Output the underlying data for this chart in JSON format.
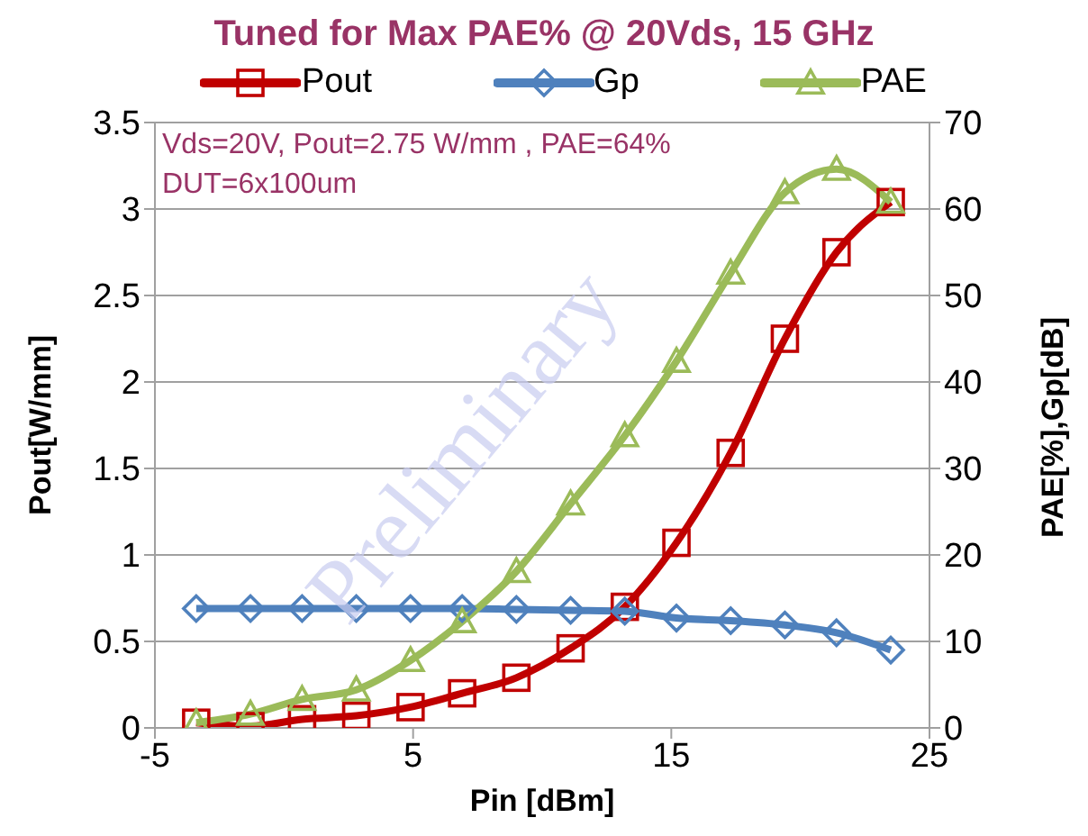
{
  "chart_data": {
    "type": "line",
    "title": "Tuned for Max PAE% @ 20Vds, 15 GHz",
    "xlabel": "Pin [dBm]",
    "ylabel": "Pout[W/mm]",
    "y2label": "PAE[%],Gp[dB]",
    "annotations": [
      "Vds=20V, Pout=2.75 W/mm , PAE=64%",
      "DUT=6x100um",
      "Preliminary"
    ],
    "x": [
      -3.4,
      -1.3,
      0.7,
      2.8,
      4.9,
      6.9,
      9.0,
      11.1,
      13.2,
      15.2,
      17.3,
      19.4,
      21.4,
      23.5
    ],
    "series": [
      {
        "name": "Pout",
        "color": "#c00000",
        "marker": "square",
        "values": [
          0.03,
          0.01,
          0.05,
          0.07,
          0.12,
          0.2,
          0.29,
          0.46,
          0.7,
          1.07,
          1.59,
          2.25,
          2.75,
          3.04
        ]
      },
      {
        "name": "Gp",
        "color": "#4f81bd",
        "marker": "diamond",
        "axis": "y2",
        "values": [
          13.8,
          13.8,
          13.8,
          13.8,
          13.8,
          13.8,
          13.7,
          13.6,
          13.5,
          12.7,
          12.4,
          11.9,
          11.0,
          9.0
        ]
      },
      {
        "name": "PAE",
        "color": "#9bbb59",
        "marker": "triangle",
        "axis": "y2",
        "values": [
          0.6,
          1.6,
          3.3,
          4.4,
          7.8,
          12.3,
          18.1,
          25.9,
          33.8,
          42.4,
          52.6,
          61.9,
          64.6,
          60.8
        ]
      }
    ],
    "xlim": [
      -5,
      25
    ],
    "xticks": [
      -5,
      5,
      15,
      25
    ],
    "ylim": [
      0,
      3.5
    ],
    "yticks": [
      0,
      0.5,
      1,
      1.5,
      2,
      2.5,
      3,
      3.5
    ],
    "y2lim": [
      0,
      70
    ],
    "y2ticks": [
      0,
      10,
      20,
      30,
      40,
      50,
      60,
      70
    ],
    "grid": "y",
    "legend": "top",
    "line_style": "solid"
  }
}
